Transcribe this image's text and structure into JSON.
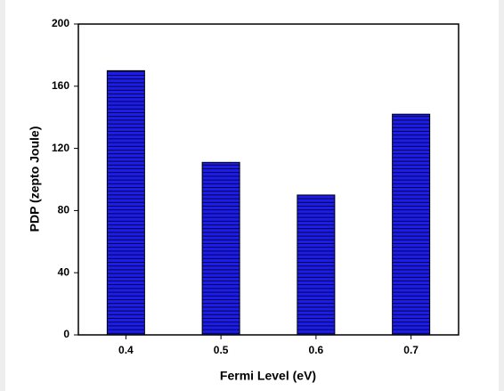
{
  "chart_data": {
    "type": "bar",
    "x_label": "Fermi Level (eV)",
    "y_label": "PDP (zepto Joule)",
    "categories": [
      "0.4",
      "0.5",
      "0.6",
      "0.7"
    ],
    "values": [
      170,
      111,
      90,
      142
    ],
    "color": "#1c1cf0",
    "ylim": [
      0,
      200
    ],
    "yticks": [
      0,
      40,
      80,
      120,
      160,
      200
    ],
    "grid": false
  }
}
